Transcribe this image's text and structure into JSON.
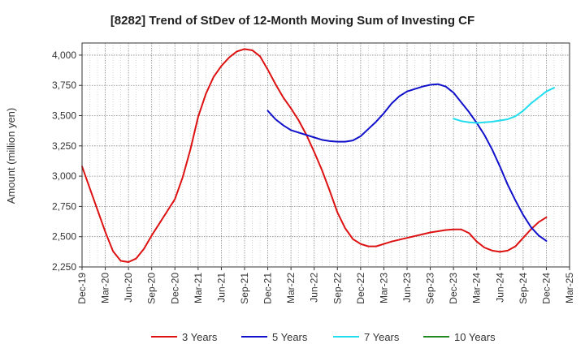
{
  "chart_data": {
    "type": "line",
    "title": "[8282]  Trend of StDev of 12-Month Moving Sum of Investing CF",
    "xlabel": "",
    "ylabel": "Amount (million yen)",
    "ylim": [
      2250,
      4100
    ],
    "yticks": [
      2250,
      2500,
      2750,
      3000,
      3250,
      3500,
      3750,
      4000
    ],
    "ytick_labels": [
      "2,250",
      "2,500",
      "2,750",
      "3,000",
      "3,250",
      "3,500",
      "3,750",
      "4,000"
    ],
    "xticks": [
      "Dec-19",
      "Mar-20",
      "Jun-20",
      "Sep-20",
      "Dec-20",
      "Mar-21",
      "Jun-21",
      "Sep-21",
      "Dec-21",
      "Mar-22",
      "Jun-22",
      "Sep-22",
      "Dec-22",
      "Mar-23",
      "Jun-23",
      "Sep-23",
      "Dec-23",
      "Mar-24",
      "Jun-24",
      "Sep-24",
      "Dec-24",
      "Mar-25"
    ],
    "grid": true,
    "legend_position": "bottom",
    "series": [
      {
        "name": "3 Years",
        "color": "#dd1111",
        "start_index": 0,
        "values": [
          3080,
          2900,
          2720,
          2540,
          2380,
          2300,
          2290,
          2320,
          2400,
          2510,
          2610,
          2710,
          2810,
          2990,
          3220,
          3490,
          3680,
          3820,
          3910,
          3980,
          4030,
          4050,
          4040,
          3990,
          3880,
          3760,
          3650,
          3560,
          3460,
          3340,
          3200,
          3050,
          2880,
          2700,
          2570,
          2480,
          2440,
          2420,
          2420,
          2440,
          2460,
          2475,
          2490,
          2505,
          2520,
          2535,
          2545,
          2555,
          2560,
          2560,
          2530,
          2460,
          2410,
          2385,
          2375,
          2385,
          2420,
          2490,
          2560,
          2620,
          2660
        ]
      },
      {
        "name": "5 Years",
        "color": "#1111cc",
        "start_index": 24,
        "values": [
          3540,
          3470,
          3420,
          3380,
          3360,
          3340,
          3320,
          3300,
          3290,
          3285,
          3285,
          3295,
          3330,
          3390,
          3450,
          3520,
          3600,
          3660,
          3700,
          3720,
          3740,
          3755,
          3760,
          3740,
          3690,
          3610,
          3530,
          3440,
          3340,
          3220,
          3080,
          2930,
          2800,
          2680,
          2580,
          2510,
          2465
        ]
      },
      {
        "name": "7 Years",
        "color": "#22ddee",
        "start_index": 48,
        "values": [
          3475,
          3455,
          3445,
          3440,
          3445,
          3450,
          3460,
          3470,
          3495,
          3540,
          3600,
          3650,
          3700,
          3730
        ]
      },
      {
        "name": "10 Years",
        "color": "#228822",
        "start_index": 0,
        "values": []
      }
    ]
  }
}
